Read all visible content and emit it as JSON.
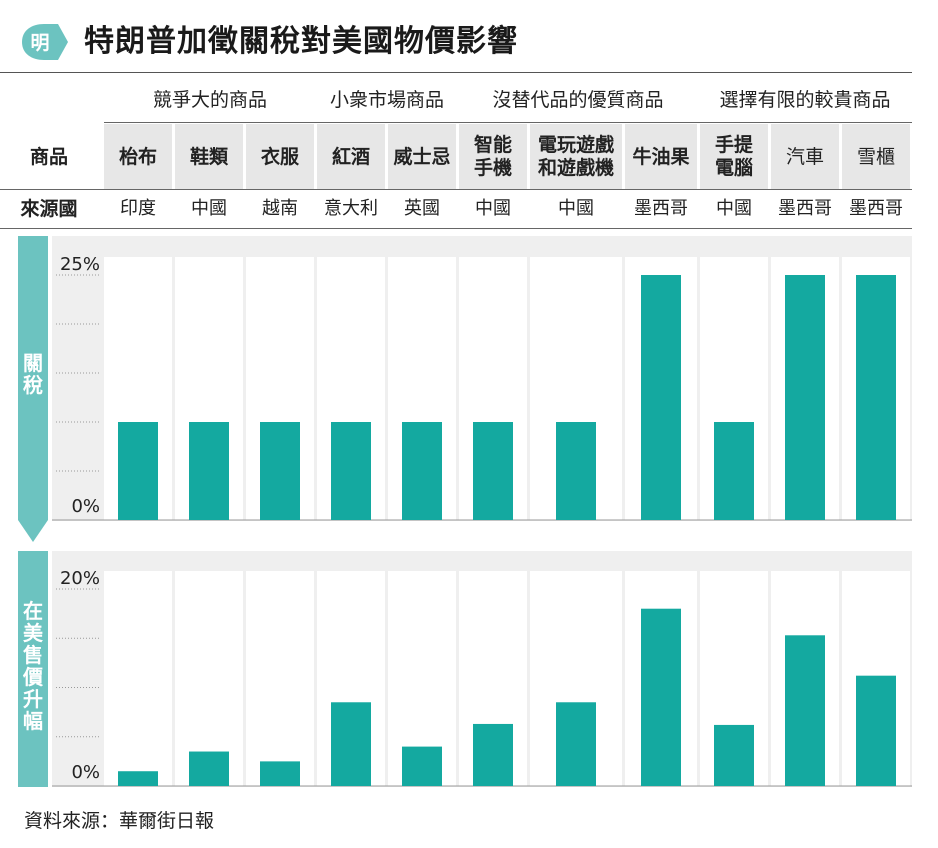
{
  "logo": {
    "text": "明",
    "color": "#6cc3c0"
  },
  "title": "特朗普加徵關稅對美國物價影響",
  "groups": [
    {
      "label": "競爭大的商品"
    },
    {
      "label": "小衆市場商品"
    },
    {
      "label": "沒替代品的優質商品"
    },
    {
      "label": "選擇有限的較貴商品"
    }
  ],
  "row_labels": {
    "product": "商品",
    "origin": "來源國"
  },
  "panel_labels": {
    "tariff": "關\n稅",
    "price": "在\n美\n售\n價\n升\n幅"
  },
  "source": "資料來源：華爾街日報",
  "colors": {
    "bar": "#14a9a0",
    "side": "#6cc3c0",
    "panel": "#efefef"
  },
  "chart_data": [
    {
      "type": "bar",
      "name": "關稅",
      "categories": [
        "枱布",
        "鞋類",
        "衣服",
        "紅酒",
        "威士忌",
        "智能\n手機",
        "電玩遊戲\n和遊戲機",
        "牛油果",
        "手提\n電腦",
        "汽車",
        "雪櫃"
      ],
      "origins": [
        "印度",
        "中國",
        "越南",
        "意大利",
        "英國",
        "中國",
        "中國",
        "墨西哥",
        "中國",
        "墨西哥",
        "墨西哥"
      ],
      "values": [
        10,
        10,
        10,
        10,
        10,
        10,
        10,
        25,
        10,
        25,
        25
      ],
      "ylim": [
        0,
        25
      ],
      "ytick_labels": [
        "0%",
        "25%"
      ],
      "gridlines": [
        5,
        10,
        15,
        20,
        25
      ]
    },
    {
      "type": "bar",
      "name": "在美售價升幅",
      "categories": [
        "枱布",
        "鞋類",
        "衣服",
        "紅酒",
        "威士忌",
        "智能\n手機",
        "電玩遊戲\n和遊戲機",
        "牛油果",
        "手提\n電腦",
        "汽車",
        "雪櫃"
      ],
      "values": [
        1.5,
        3.5,
        2.5,
        8.5,
        4,
        6.3,
        8.5,
        18,
        6.2,
        15.3,
        11.2
      ],
      "ylim": [
        0,
        20
      ],
      "ytick_labels": [
        "0%",
        "20%"
      ],
      "gridlines": [
        5,
        10,
        15,
        20
      ]
    }
  ]
}
